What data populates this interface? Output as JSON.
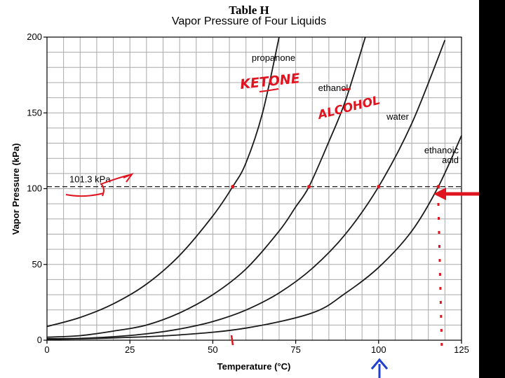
{
  "colors": {
    "grid": "#a9a9a9",
    "curve": "#1a1a1a",
    "annotation": "#e0141e",
    "arrow_up": "#1f3fd0",
    "frame": "#000000"
  },
  "chart_data": {
    "type": "line",
    "table_label": "Table H",
    "title": "Vapor Pressure of Four Liquids",
    "xlabel": "Temperature (°C)",
    "ylabel": "Vapor Pressure (kPa)",
    "xlim": [
      0,
      125
    ],
    "ylim": [
      0,
      200
    ],
    "x_ticks": [
      0,
      25,
      50,
      75,
      100,
      125
    ],
    "y_ticks": [
      0,
      50,
      100,
      150,
      200
    ],
    "grid": true,
    "reference_line": {
      "y": 101.3,
      "label": "101.3 kPa",
      "style": "dashed"
    },
    "series": [
      {
        "name": "propanone",
        "x": [
          0,
          10,
          20,
          30,
          40,
          50,
          56,
          60,
          65,
          70
        ],
        "y": [
          9,
          15,
          24,
          37,
          56,
          82,
          101.3,
          117,
          150,
          200
        ]
      },
      {
        "name": "ethanol",
        "x": [
          0,
          10,
          20,
          30,
          40,
          50,
          60,
          70,
          75,
          79,
          85,
          90,
          96
        ],
        "y": [
          2,
          3,
          6,
          10,
          18,
          30,
          47,
          72,
          88,
          101.3,
          131,
          158,
          200
        ]
      },
      {
        "name": "water",
        "x": [
          0,
          10,
          20,
          30,
          40,
          50,
          60,
          70,
          80,
          90,
          100,
          110,
          120
        ],
        "y": [
          1,
          1.2,
          2.3,
          4.2,
          7.4,
          12.3,
          19.9,
          31.2,
          47.4,
          70,
          101.3,
          143,
          198
        ]
      },
      {
        "name": "ethanoic acid",
        "x": [
          0,
          20,
          40,
          60,
          80,
          90,
          100,
          110,
          118,
          125
        ],
        "y": [
          0.5,
          1.5,
          3.5,
          8,
          18,
          31,
          48,
          72,
          101.3,
          135
        ]
      }
    ],
    "marked_points": [
      {
        "x": 56,
        "y": 101.3
      },
      {
        "x": 79,
        "y": 101.3
      },
      {
        "x": 100,
        "y": 101.3
      },
      {
        "x": 118,
        "y": 101.3
      }
    ],
    "annotations": {
      "propanone_note": "KETONE",
      "ethanol_note": "ALCOHOL"
    }
  }
}
